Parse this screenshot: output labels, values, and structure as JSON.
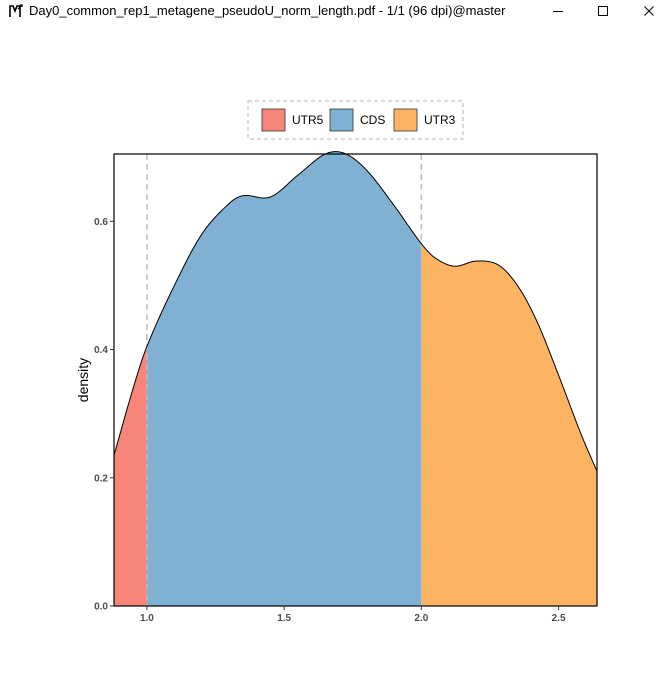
{
  "window": {
    "title": "Day0_common_rep1_metagene_pseudoU_norm_length.pdf - 1/1 (96 dpi)@master",
    "icon": "pdf-viewer-app-icon",
    "buttons": [
      "minimize-icon",
      "maximize-icon",
      "close-icon"
    ]
  },
  "chart_data": {
    "type": "area",
    "title": "",
    "xlabel": "",
    "ylabel": "density",
    "xlim": [
      0.88,
      2.64
    ],
    "ylim": [
      0,
      0.705
    ],
    "x_ticks": [
      1.0,
      1.5,
      2.0,
      2.5
    ],
    "x_tick_labels": [
      "1.0",
      "1.5",
      "2.0",
      "2.5"
    ],
    "y_ticks": [
      0.0,
      0.2,
      0.4,
      0.6
    ],
    "y_tick_labels": [
      "0.0",
      "0.2",
      "0.4",
      "0.6"
    ],
    "vlines": [
      1.0,
      2.0
    ],
    "grid": false,
    "legend": {
      "placement": "top",
      "boxed": true
    },
    "curve": {
      "x": [
        0.88,
        0.95,
        1.0,
        1.1,
        1.2,
        1.3,
        1.35,
        1.45,
        1.55,
        1.65,
        1.72,
        1.8,
        1.9,
        2.0,
        2.05,
        2.12,
        2.2,
        2.28,
        2.35,
        2.42,
        2.5,
        2.58,
        2.64
      ],
      "y": [
        0.235,
        0.34,
        0.405,
        0.5,
        0.58,
        0.628,
        0.64,
        0.638,
        0.672,
        0.705,
        0.706,
        0.68,
        0.625,
        0.565,
        0.543,
        0.53,
        0.538,
        0.532,
        0.5,
        0.445,
        0.36,
        0.27,
        0.21
      ]
    },
    "series": [
      {
        "name": "UTR5",
        "x_range": [
          0.88,
          1.0
        ],
        "color": "#f8857a"
      },
      {
        "name": "CDS",
        "x_range": [
          1.0,
          2.0
        ],
        "color": "#80b1d3"
      },
      {
        "name": "UTR3",
        "x_range": [
          2.0,
          2.64
        ],
        "color": "#fdb462"
      }
    ]
  }
}
